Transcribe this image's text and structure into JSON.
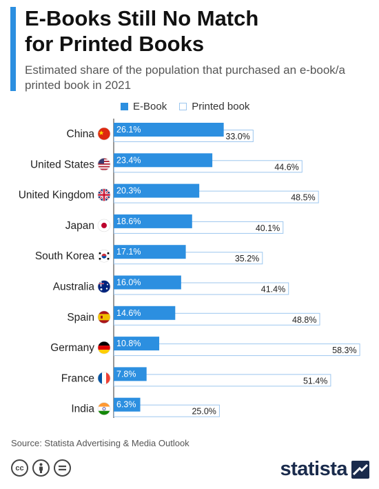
{
  "header": {
    "title_line1": "E-Books Still No Match",
    "title_line2": "for Printed Books",
    "subtitle": "Estimated share of the population that purchased an e-book/a printed book in 2021"
  },
  "colors": {
    "ebook": "#2c8fe0",
    "printed_border": "#9cc6ee",
    "accent": "#2c8fe0"
  },
  "chart_data": {
    "type": "bar",
    "orientation": "horizontal",
    "title": "E-Books Still No Match for Printed Books",
    "subtitle": "Estimated share of the population that purchased an e-book/a printed book in 2021",
    "categories": [
      "China",
      "United States",
      "United Kingdom",
      "Japan",
      "South Korea",
      "Australia",
      "Spain",
      "Germany",
      "France",
      "India"
    ],
    "flags": [
      "flag-china-icon",
      "flag-usa-icon",
      "flag-uk-icon",
      "flag-japan-icon",
      "flag-south-korea-icon",
      "flag-australia-icon",
      "flag-spain-icon",
      "flag-germany-icon",
      "flag-france-icon",
      "flag-india-icon"
    ],
    "series": [
      {
        "name": "E-Book",
        "values": [
          26.1,
          23.4,
          20.3,
          18.6,
          17.1,
          16.0,
          14.6,
          10.8,
          7.8,
          6.3
        ]
      },
      {
        "name": "Printed book",
        "values": [
          33.0,
          44.6,
          48.5,
          40.1,
          35.2,
          41.4,
          48.8,
          58.3,
          51.4,
          25.0
        ]
      }
    ],
    "value_suffix": "%",
    "xlim": [
      0,
      60
    ],
    "legend_position": "top",
    "grid": false
  },
  "legend": {
    "ebook": "E-Book",
    "printed": "Printed book"
  },
  "footer": {
    "source": "Source: Statista Advertising & Media Outlook",
    "brand": "statista"
  }
}
